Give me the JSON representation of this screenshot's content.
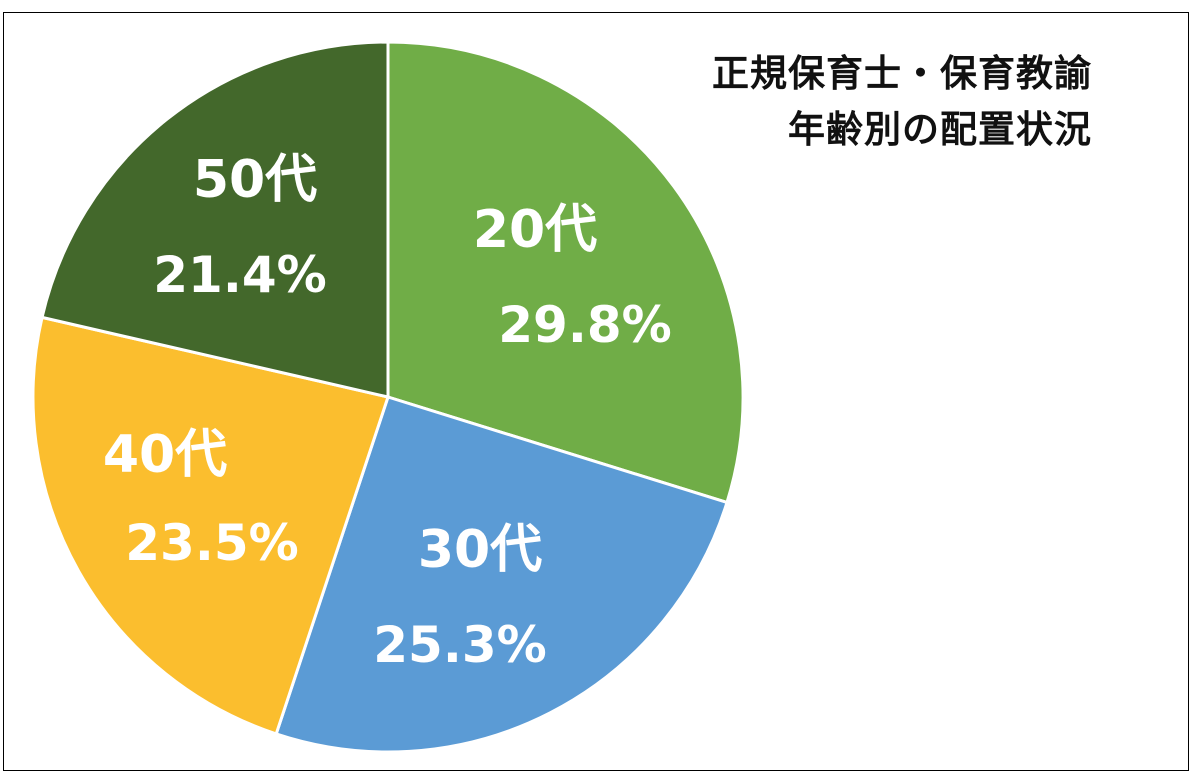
{
  "chart_data": {
    "type": "pie",
    "title_lines": [
      "正規保育士・保育教諭",
      "年齢別の配置状況"
    ],
    "start": "12 o'clock, clockwise",
    "slices": [
      {
        "label": "20代",
        "value": 29.8,
        "value_label": "29.8%",
        "color": "#70AD47"
      },
      {
        "label": "30代",
        "value": 25.3,
        "value_label": "25.3%",
        "color": "#5B9BD5"
      },
      {
        "label": "40代",
        "value": 23.5,
        "value_label": "23.5%",
        "color": "#FBBE2E"
      },
      {
        "label": "50代",
        "value": 21.4,
        "value_label": "21.4%",
        "color": "#43682B"
      }
    ],
    "slice_border_color": "#FFFFFF",
    "legend": "none"
  }
}
